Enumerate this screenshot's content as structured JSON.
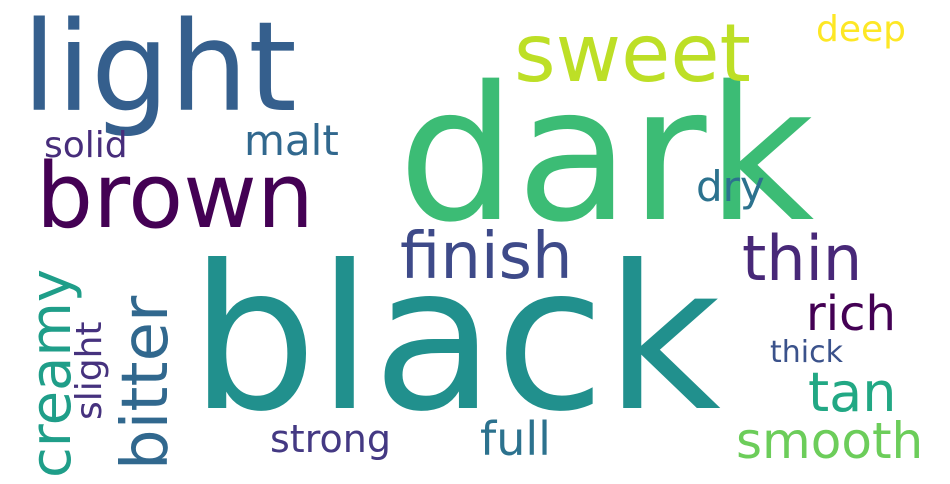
{
  "words": [
    {
      "text": "dark",
      "color": "#3cbc75"
    },
    {
      "text": "black",
      "color": "#21908d"
    },
    {
      "text": "light",
      "color": "#355f8d"
    },
    {
      "text": "brown",
      "color": "#440154"
    },
    {
      "text": "sweet",
      "color": "#bddf26"
    },
    {
      "text": "finish",
      "color": "#3e4a89"
    },
    {
      "text": "thin",
      "color": "#482878"
    },
    {
      "text": "creamy",
      "color": "#1f9e89"
    },
    {
      "text": "bitter",
      "color": "#31688e"
    },
    {
      "text": "smooth",
      "color": "#6ccd5a"
    },
    {
      "text": "tan",
      "color": "#22a884"
    },
    {
      "text": "full",
      "color": "#2c728e"
    },
    {
      "text": "rich",
      "color": "#440154"
    },
    {
      "text": "strong",
      "color": "#443983"
    },
    {
      "text": "malt",
      "color": "#31688e"
    },
    {
      "text": "solid",
      "color": "#472d7b"
    },
    {
      "text": "dry",
      "color": "#2c728e"
    },
    {
      "text": "thick",
      "color": "#3b528b"
    },
    {
      "text": "slight",
      "color": "#46327e"
    },
    {
      "text": "deep",
      "color": "#fde725"
    }
  ]
}
